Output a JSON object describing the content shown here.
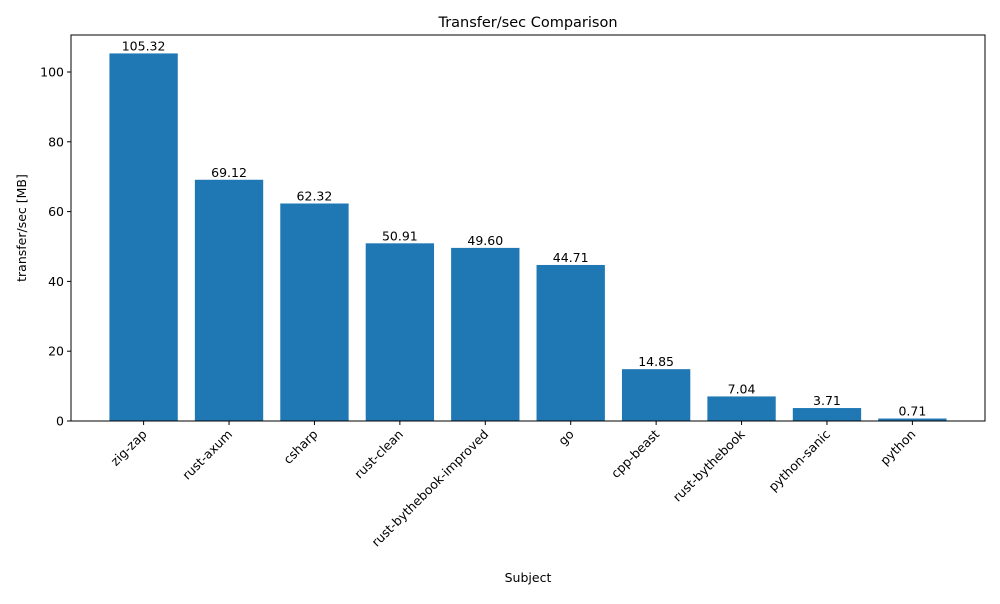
{
  "chart_data": {
    "type": "bar",
    "title": "Transfer/sec Comparison",
    "xlabel": "Subject",
    "ylabel": "transfer/sec [MB]",
    "categories": [
      "zig-zap",
      "rust-axum",
      "csharp",
      "rust-clean",
      "rust-bythebook-improved",
      "go",
      "cpp-beast",
      "rust-bythebook",
      "python-sanic",
      "python"
    ],
    "values": [
      105.32,
      69.12,
      62.32,
      50.91,
      49.6,
      44.71,
      14.85,
      7.04,
      3.71,
      0.71
    ],
    "data_labels": [
      "105.32",
      "69.12",
      "62.32",
      "50.91",
      "49.60",
      "44.71",
      "14.85",
      "7.04",
      "3.71",
      "0.71"
    ],
    "ylim": [
      0,
      110.6
    ],
    "yticks": [
      0,
      20,
      40,
      60,
      80,
      100
    ],
    "grid": false,
    "bar_color": "#1f77b4"
  }
}
